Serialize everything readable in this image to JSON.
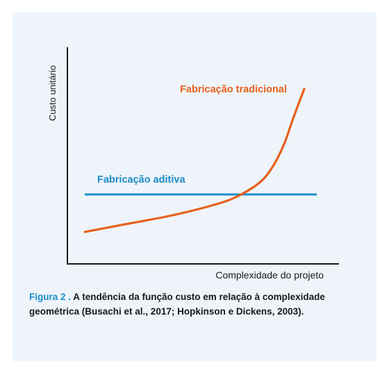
{
  "chart_data": {
    "type": "line",
    "xlabel": "Complexidade do projeto",
    "ylabel": "Custo unitário",
    "series": [
      {
        "name": "Fabricação tradicional",
        "color": "#e8601c",
        "x": [
          0,
          20,
          40,
          60,
          70,
          80,
          86,
          91,
          95,
          100
        ],
        "y": [
          8,
          14,
          20,
          28,
          34,
          44,
          56,
          72,
          90,
          111
        ]
      },
      {
        "name": "Fabricação aditiva",
        "color": "#1e8cc9",
        "x": [
          0,
          100
        ],
        "y": [
          35,
          35
        ]
      }
    ],
    "grid": false,
    "legend": "inline labels"
  },
  "caption": {
    "label": "Figura 2 .",
    "text": " A tendência da função custo em relação à complexidade geométrica (Busachi et al., 2017; Hopkinson e Dickens, 2003)."
  }
}
